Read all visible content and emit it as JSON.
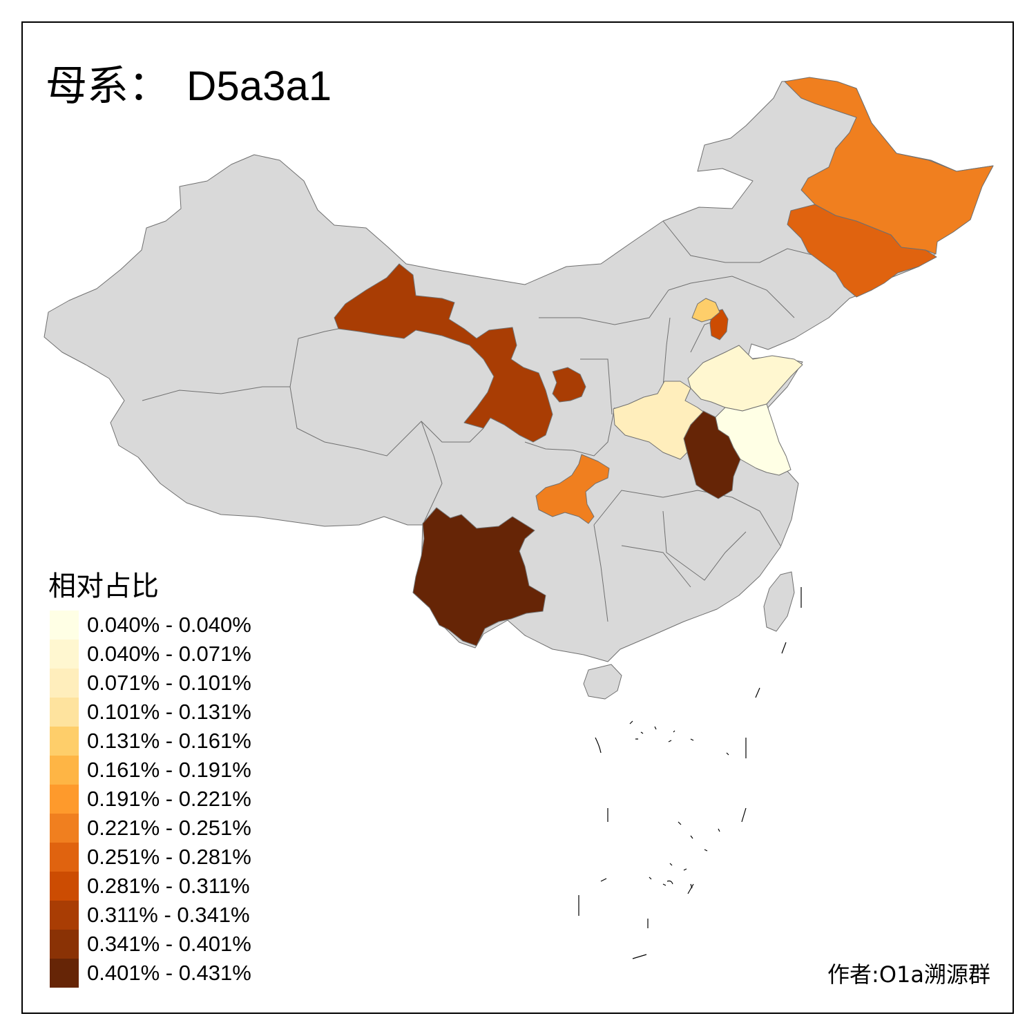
{
  "title": {
    "prefix": "母系：",
    "haplogroup": "D5a3a1"
  },
  "legend": {
    "title": "相对占比",
    "bins": [
      {
        "label": "0.040% - 0.040%",
        "color": "#ffffe5"
      },
      {
        "label": "0.040% - 0.071%",
        "color": "#fff7d0"
      },
      {
        "label": "0.071% - 0.101%",
        "color": "#ffeebc"
      },
      {
        "label": "0.101% - 0.131%",
        "color": "#fee39e"
      },
      {
        "label": "0.131% - 0.161%",
        "color": "#fece6a"
      },
      {
        "label": "0.161% - 0.191%",
        "color": "#feb545"
      },
      {
        "label": "0.191% - 0.221%",
        "color": "#fe9a2c"
      },
      {
        "label": "0.221% - 0.251%",
        "color": "#f07f1f"
      },
      {
        "label": "0.251% - 0.281%",
        "color": "#e0630f"
      },
      {
        "label": "0.281% - 0.311%",
        "color": "#cc4c02"
      },
      {
        "label": "0.311% - 0.341%",
        "color": "#a93d04"
      },
      {
        "label": "0.341% - 0.401%",
        "color": "#8a3205"
      },
      {
        "label": "0.401% - 0.431%",
        "color": "#662506"
      }
    ]
  },
  "map": {
    "base_color": "#d9d9d9",
    "highlighted_regions": [
      {
        "id": "yunnan",
        "bin": 12
      },
      {
        "id": "anhui",
        "bin": 12
      },
      {
        "id": "gansu",
        "bin": 10
      },
      {
        "id": "ningxia",
        "bin": 10
      },
      {
        "id": "tianjin",
        "bin": 9
      },
      {
        "id": "jilin",
        "bin": 8
      },
      {
        "id": "heilongjiang",
        "bin": 7
      },
      {
        "id": "chongqing",
        "bin": 7
      },
      {
        "id": "beijing",
        "bin": 4
      },
      {
        "id": "henan",
        "bin": 2
      },
      {
        "id": "shandong",
        "bin": 1
      },
      {
        "id": "jiangsu",
        "bin": 0
      }
    ]
  },
  "credit": "作者:O1a溯源群"
}
